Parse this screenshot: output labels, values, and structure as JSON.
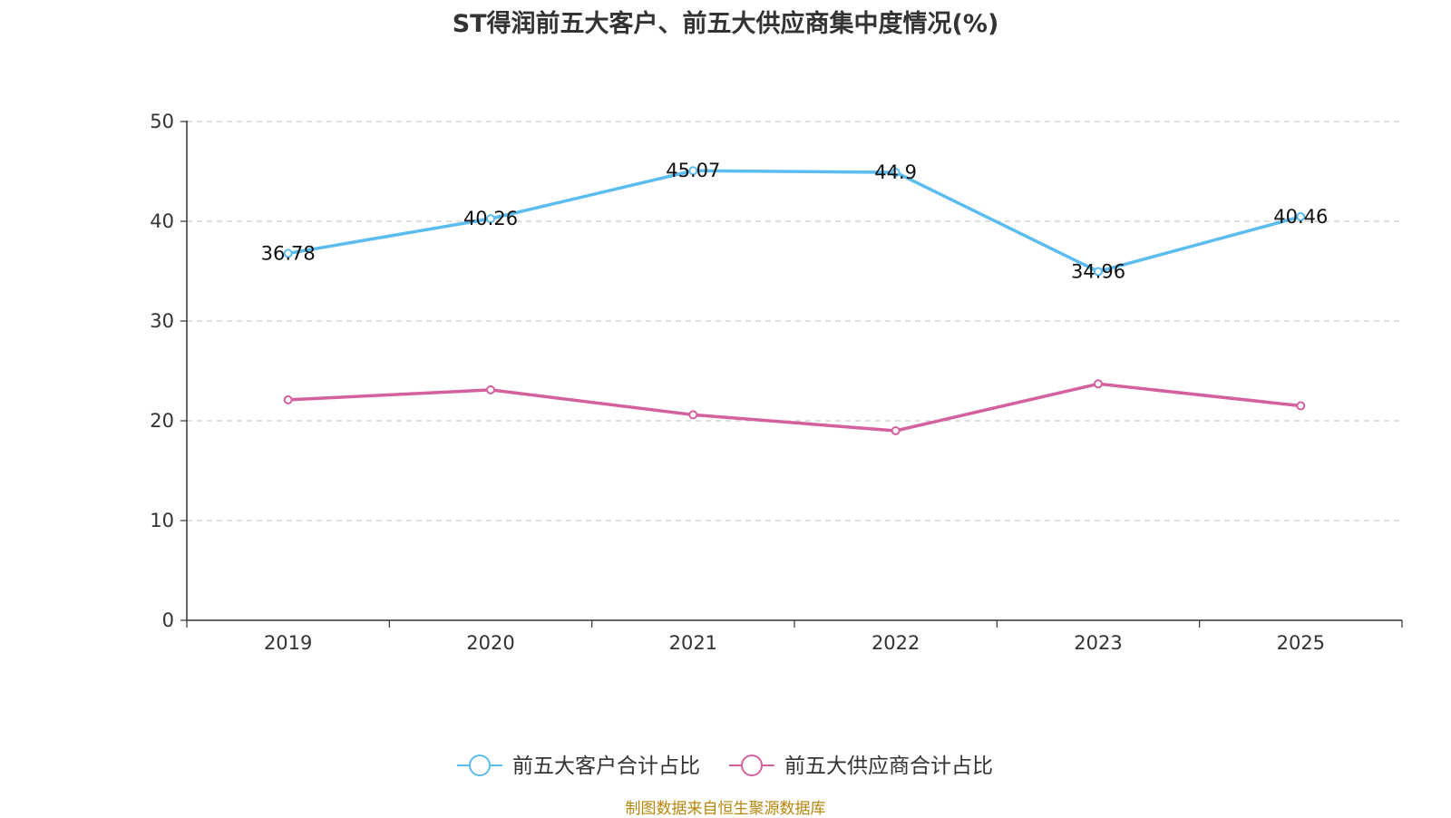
{
  "chart_data": {
    "type": "line",
    "title": "ST得润前五大客户、前五大供应商集中度情况(%)",
    "categories": [
      "2019",
      "2020",
      "2021",
      "2022",
      "2023",
      "2025"
    ],
    "ylim": [
      0,
      50
    ],
    "yticks": [
      0,
      10,
      20,
      30,
      40,
      50
    ],
    "grid": true,
    "legend_position": "bottom-center",
    "series": [
      {
        "name": "前五大客户合计占比",
        "color": "#5bbcef",
        "values": [
          36.78,
          40.26,
          45.07,
          44.9,
          34.96,
          40.46
        ],
        "labels": [
          "36.78",
          "40.26",
          "45.07",
          "44.9",
          "34.96",
          "40.46"
        ],
        "show_labels": true
      },
      {
        "name": "前五大供应商合计占比",
        "color": "#d4609f",
        "values": [
          22.1,
          23.1,
          20.6,
          19.0,
          23.7,
          21.5
        ],
        "show_labels": false
      }
    ]
  },
  "source_note": "制图数据来自恒生聚源数据库"
}
